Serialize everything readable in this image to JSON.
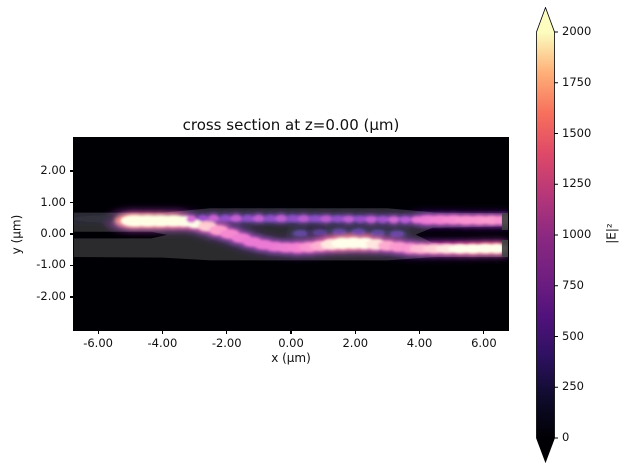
{
  "chart_data": {
    "type": "heatmap",
    "title": "cross section at z=0.00 (μm)",
    "xlabel": "x (μm)",
    "ylabel": "y (μm)",
    "xlim": [
      -6.75,
      6.75
    ],
    "ylim": [
      -3.05,
      3.05
    ],
    "xticks": [
      -6,
      -4,
      -2,
      0,
      2,
      4,
      6
    ],
    "xtick_labels": [
      "-6.00",
      "-4.00",
      "-2.00",
      "0.00",
      "2.00",
      "4.00",
      "6.00"
    ],
    "yticks": [
      2,
      1,
      0,
      -1,
      -2
    ],
    "ytick_labels": [
      "2.00",
      "1.00",
      "0.00",
      "-1.00",
      "-2.00"
    ],
    "grid": false,
    "background_value_color": "#000004",
    "colormap": {
      "name": "magma",
      "stops": [
        [
          0,
          "#000004"
        ],
        [
          0.1,
          "#0f0b2c"
        ],
        [
          0.2,
          "#2d1160"
        ],
        [
          0.3,
          "#51127c"
        ],
        [
          0.4,
          "#721f81"
        ],
        [
          0.5,
          "#8c2981"
        ],
        [
          0.6,
          "#b73779"
        ],
        [
          0.7,
          "#de4968"
        ],
        [
          0.8,
          "#f7705c"
        ],
        [
          0.9,
          "#feb078"
        ],
        [
          1,
          "#fcfdbf"
        ]
      ]
    },
    "colorbar": {
      "label": "|E|²",
      "vmin": 0,
      "vmax": 2000,
      "ticks": [
        0,
        250,
        500,
        750,
        1000,
        1250,
        1500,
        1750,
        2000
      ],
      "extend": "both",
      "over_color": "#fcfdbf",
      "under_color": "#000004"
    },
    "structure_overlay": {
      "description": "waveguide permittivity outline drawn as translucent gray over the black background: two input strips (gap closes near x=-3.9) merging into a slab, splitting again into two output arms (gap opens near x=3.9)",
      "fill": "#ffffff",
      "opacity": 0.17,
      "slab_outline": [
        [
          -6.75,
          0.68
        ],
        [
          -4.0,
          0.68
        ],
        [
          -2.5,
          0.82
        ],
        [
          3.0,
          0.82
        ],
        [
          4.5,
          0.68
        ],
        [
          6.75,
          0.66
        ],
        [
          6.75,
          -0.73
        ],
        [
          4.5,
          -0.73
        ],
        [
          3.0,
          -0.84
        ],
        [
          -2.5,
          -0.84
        ],
        [
          -4.0,
          -0.75
        ],
        [
          -6.75,
          -0.73
        ]
      ],
      "input_gap": [
        [
          -6.75,
          0.07
        ],
        [
          -4.35,
          0.07
        ],
        [
          -3.85,
          -0.03
        ],
        [
          -4.35,
          -0.14
        ],
        [
          -6.75,
          -0.14
        ]
      ],
      "output_gap": [
        [
          3.88,
          -0.02
        ],
        [
          4.4,
          0.2
        ],
        [
          6.75,
          0.24
        ],
        [
          6.75,
          -0.38
        ],
        [
          4.4,
          -0.28
        ]
      ],
      "end_stubs": [
        [
          6.56,
          0.13,
          6.75,
          0.65
        ],
        [
          6.56,
          -0.73,
          6.75,
          -0.19
        ]
      ],
      "end_stub_color": "#424242"
    },
    "field_description": "|E|² launched at x=-5.1 in the upper input waveguide (y≈0.45, saturated >2000), adiabatically transferring down across y=0 near x=-2..0, strong lobe near x≈2, y≈-0.3, then splitting at x≈3.9 into a bright lower output arm (y≈-0.46) and a weaker rippled upper arm (y≈0.45); faint standing-wave ripples along the upper guide between x=-3 and 4",
    "field_blobs_format": [
      "x_um",
      "y_um",
      "rx_um",
      "ry_um",
      "intensity"
    ],
    "field_blobs": [
      [
        -4.85,
        0.42,
        0.45,
        0.18,
        2400
      ],
      [
        -4.45,
        0.42,
        0.45,
        0.18,
        2400
      ],
      [
        -4.05,
        0.42,
        0.45,
        0.18,
        2400
      ],
      [
        -3.65,
        0.42,
        0.42,
        0.18,
        2300
      ],
      [
        -3.3,
        0.4,
        0.4,
        0.17,
        2200
      ],
      [
        -2.95,
        0.34,
        0.32,
        0.16,
        2000
      ],
      [
        -2.6,
        0.24,
        0.3,
        0.16,
        1800
      ],
      [
        -2.25,
        0.12,
        0.3,
        0.16,
        1600
      ],
      [
        -1.9,
        0.0,
        0.3,
        0.15,
        1450
      ],
      [
        -1.55,
        -0.13,
        0.3,
        0.15,
        1350
      ],
      [
        -1.2,
        -0.25,
        0.3,
        0.15,
        1300
      ],
      [
        -0.85,
        -0.34,
        0.3,
        0.15,
        1300
      ],
      [
        -0.5,
        -0.4,
        0.3,
        0.15,
        1300
      ],
      [
        -0.15,
        -0.43,
        0.3,
        0.15,
        1350
      ],
      [
        0.2,
        -0.44,
        0.3,
        0.16,
        1400
      ],
      [
        0.55,
        -0.42,
        0.3,
        0.16,
        1500
      ],
      [
        0.9,
        -0.38,
        0.3,
        0.16,
        1650
      ],
      [
        1.25,
        -0.33,
        0.32,
        0.17,
        1900
      ],
      [
        1.6,
        -0.3,
        0.34,
        0.18,
        2200
      ],
      [
        1.95,
        -0.29,
        0.34,
        0.18,
        2300
      ],
      [
        2.3,
        -0.3,
        0.34,
        0.18,
        2200
      ],
      [
        2.65,
        -0.33,
        0.32,
        0.17,
        1900
      ],
      [
        3.0,
        -0.37,
        0.3,
        0.16,
        1650
      ],
      [
        3.35,
        -0.41,
        0.3,
        0.16,
        1550
      ],
      [
        3.7,
        -0.45,
        0.3,
        0.16,
        1500
      ],
      [
        4.05,
        -0.47,
        0.35,
        0.15,
        1700
      ],
      [
        4.45,
        -0.47,
        0.35,
        0.15,
        1800
      ],
      [
        4.85,
        -0.47,
        0.35,
        0.15,
        1900
      ],
      [
        5.25,
        -0.47,
        0.35,
        0.15,
        2000
      ],
      [
        5.65,
        -0.47,
        0.35,
        0.15,
        2150
      ],
      [
        6.05,
        -0.46,
        0.35,
        0.15,
        2250
      ],
      [
        6.4,
        -0.46,
        0.3,
        0.15,
        2300
      ],
      [
        0.35,
        0.48,
        3.6,
        0.1,
        520
      ],
      [
        -3.1,
        0.47,
        0.16,
        0.12,
        1100
      ],
      [
        -2.75,
        0.49,
        0.16,
        0.11,
        680
      ],
      [
        -2.4,
        0.5,
        0.16,
        0.11,
        1020
      ],
      [
        -2.05,
        0.5,
        0.16,
        0.11,
        620
      ],
      [
        -1.7,
        0.5,
        0.16,
        0.11,
        980
      ],
      [
        -1.35,
        0.5,
        0.16,
        0.11,
        600
      ],
      [
        -1.0,
        0.5,
        0.16,
        0.11,
        950
      ],
      [
        -0.65,
        0.5,
        0.16,
        0.11,
        600
      ],
      [
        -0.3,
        0.5,
        0.16,
        0.11,
        930
      ],
      [
        0.05,
        0.5,
        0.16,
        0.11,
        600
      ],
      [
        0.4,
        0.49,
        0.16,
        0.11,
        900
      ],
      [
        0.75,
        0.49,
        0.16,
        0.11,
        600
      ],
      [
        1.1,
        0.48,
        0.16,
        0.11,
        900
      ],
      [
        1.45,
        0.48,
        0.16,
        0.11,
        620
      ],
      [
        1.8,
        0.47,
        0.16,
        0.11,
        920
      ],
      [
        2.15,
        0.47,
        0.16,
        0.11,
        660
      ],
      [
        2.5,
        0.46,
        0.16,
        0.11,
        980
      ],
      [
        2.85,
        0.46,
        0.16,
        0.11,
        720
      ],
      [
        3.2,
        0.45,
        0.16,
        0.11,
        1060
      ],
      [
        3.55,
        0.45,
        0.16,
        0.11,
        860
      ],
      [
        3.9,
        0.45,
        0.16,
        0.11,
        1200
      ],
      [
        4.25,
        0.45,
        0.35,
        0.14,
        1300
      ],
      [
        4.65,
        0.45,
        0.35,
        0.14,
        1400
      ],
      [
        5.05,
        0.45,
        0.35,
        0.14,
        1450
      ],
      [
        5.45,
        0.44,
        0.35,
        0.14,
        1500
      ],
      [
        5.85,
        0.44,
        0.35,
        0.14,
        1520
      ],
      [
        6.25,
        0.44,
        0.35,
        0.14,
        1550
      ],
      [
        6.55,
        0.44,
        0.25,
        0.14,
        1500
      ],
      [
        0.3,
        0.02,
        0.22,
        0.1,
        380
      ],
      [
        0.9,
        0.04,
        0.22,
        0.1,
        340
      ],
      [
        1.5,
        0.06,
        0.22,
        0.1,
        400
      ],
      [
        2.1,
        0.06,
        0.22,
        0.1,
        430
      ],
      [
        2.7,
        0.03,
        0.22,
        0.1,
        380
      ],
      [
        3.3,
        0.0,
        0.22,
        0.1,
        420
      ]
    ]
  }
}
